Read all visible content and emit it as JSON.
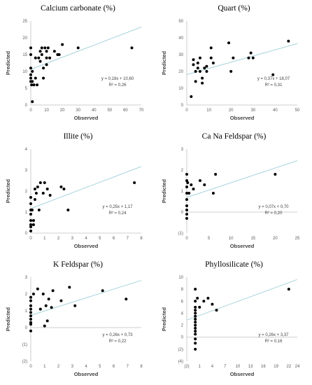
{
  "chart_data": [
    {
      "type": "scatter",
      "title": "Calcium carbonate (%)",
      "xlabel": "Observed",
      "ylabel": "Predicted",
      "xlim": [
        0,
        70
      ],
      "ylim": [
        0,
        25
      ],
      "xticks": [
        "0",
        "10",
        "20",
        "30",
        "40",
        "50",
        "60",
        "70"
      ],
      "yticks": [
        "0",
        "5",
        "10",
        "15",
        "20",
        "25"
      ],
      "points": [
        [
          0,
          17
        ],
        [
          0,
          15
        ],
        [
          0,
          11
        ],
        [
          0,
          9
        ],
        [
          0,
          8
        ],
        [
          0,
          7
        ],
        [
          0.5,
          6
        ],
        [
          1,
          10
        ],
        [
          1,
          7
        ],
        [
          1,
          1
        ],
        [
          2,
          6
        ],
        [
          3,
          14
        ],
        [
          3,
          8
        ],
        [
          4,
          6
        ],
        [
          5,
          14
        ],
        [
          6,
          16
        ],
        [
          6,
          13
        ],
        [
          7,
          17
        ],
        [
          7,
          15
        ],
        [
          8,
          8
        ],
        [
          8,
          11
        ],
        [
          9,
          17
        ],
        [
          10,
          16
        ],
        [
          10,
          14
        ],
        [
          10,
          12
        ],
        [
          11,
          17
        ],
        [
          12,
          14
        ],
        [
          15,
          16
        ],
        [
          17,
          15
        ],
        [
          18,
          15
        ],
        [
          20,
          18
        ],
        [
          30,
          17
        ],
        [
          64,
          17
        ]
      ],
      "trendline": {
        "slope": 0.18,
        "intercept": 10.6
      },
      "equation": "y = 0,18x + 10,60",
      "r2": "R² = 0,26",
      "grid": false
    },
    {
      "type": "scatter",
      "title": "Quart (%)",
      "xlabel": "Observed",
      "ylabel": "Predicted",
      "xlim": [
        0,
        50
      ],
      "ylim": [
        0,
        50
      ],
      "xticks": [
        "0",
        "10",
        "20",
        "30",
        "40",
        "50"
      ],
      "yticks": [
        "0",
        "10",
        "20",
        "30",
        "40",
        "50"
      ],
      "points": [
        [
          2,
          5
        ],
        [
          3,
          27
        ],
        [
          3,
          24
        ],
        [
          4,
          20
        ],
        [
          4,
          14
        ],
        [
          5,
          25
        ],
        [
          5,
          22
        ],
        [
          6,
          28
        ],
        [
          6,
          20
        ],
        [
          7,
          16
        ],
        [
          7,
          13
        ],
        [
          8,
          22
        ],
        [
          9,
          20
        ],
        [
          9,
          23
        ],
        [
          11,
          34
        ],
        [
          11,
          28
        ],
        [
          12,
          25
        ],
        [
          19,
          37
        ],
        [
          20,
          20
        ],
        [
          21,
          28
        ],
        [
          28,
          28
        ],
        [
          29,
          31
        ],
        [
          30,
          28
        ],
        [
          39,
          18
        ],
        [
          46,
          38
        ]
      ],
      "trendline": {
        "slope": 0.37,
        "intercept": 18.07
      },
      "equation": "y = 0,37x + 18,07",
      "r2": "R² = 0,31",
      "grid": false
    },
    {
      "type": "scatter",
      "title": "Illite (%)",
      "xlabel": "Observed",
      "ylabel": "Predicted",
      "xlim": [
        0,
        8
      ],
      "ylim": [
        0,
        4
      ],
      "xticks": [
        "0",
        "1",
        "2",
        "3",
        "4",
        "5",
        "6",
        "7",
        "8"
      ],
      "yticks": [
        "0",
        "1",
        "2",
        "3",
        "4"
      ],
      "points": [
        [
          0,
          1.7
        ],
        [
          0,
          1.4
        ],
        [
          0,
          1.1
        ],
        [
          0,
          0.9
        ],
        [
          0,
          0.6
        ],
        [
          0,
          0.4
        ],
        [
          0,
          0.3
        ],
        [
          0,
          0.1
        ],
        [
          0.1,
          1.1
        ],
        [
          0.2,
          0.6
        ],
        [
          0.2,
          0.4
        ],
        [
          0.3,
          2.1
        ],
        [
          0.3,
          1.6
        ],
        [
          0.4,
          1.9
        ],
        [
          0.5,
          2.2
        ],
        [
          0.6,
          1.1
        ],
        [
          0.7,
          2.4
        ],
        [
          0.9,
          1.9
        ],
        [
          1,
          2.4
        ],
        [
          1.2,
          2.1
        ],
        [
          1.4,
          1.8
        ],
        [
          2.2,
          2.2
        ],
        [
          2.4,
          2.1
        ],
        [
          2.7,
          1.1
        ],
        [
          7.5,
          2.4
        ]
      ],
      "trendline": {
        "slope": 0.25,
        "intercept": 1.17
      },
      "equation": "y = 0,25x + 1,17",
      "r2": "R² = 0,24",
      "grid": false
    },
    {
      "type": "scatter",
      "title": "Ca Na Feldspar (%)",
      "xlabel": "Observed",
      "ylabel": "Predicted",
      "xlim": [
        0,
        25
      ],
      "ylim": [
        -1,
        3
      ],
      "xticks": [
        "0",
        "5",
        "10",
        "15",
        "20",
        "25"
      ],
      "yticks": [
        "(1)",
        "0",
        "1",
        "2",
        "3"
      ],
      "points": [
        [
          0,
          1.8
        ],
        [
          0,
          1.5
        ],
        [
          0,
          1.2
        ],
        [
          0,
          0.9
        ],
        [
          0,
          0.6
        ],
        [
          0,
          0.3
        ],
        [
          0,
          0.1
        ],
        [
          0,
          -0.1
        ],
        [
          0,
          -0.3
        ],
        [
          0.2,
          1.4
        ],
        [
          0.5,
          0.9
        ],
        [
          1,
          1.3
        ],
        [
          1.5,
          1.1
        ],
        [
          3,
          1.5
        ],
        [
          4,
          1.3
        ],
        [
          6,
          0.9
        ],
        [
          6.5,
          1.8
        ],
        [
          20,
          1.8
        ]
      ],
      "trendline": {
        "slope": 0.07,
        "intercept": 0.7
      },
      "equation": "y = 0,07x + 0,70",
      "r2": "R² = 0,20",
      "grid": false
    },
    {
      "type": "scatter",
      "title": "K Feldspar (%)",
      "xlabel": "Observed",
      "ylabel": "Predicted",
      "xlim": [
        0,
        8
      ],
      "ylim": [
        -2,
        3
      ],
      "xticks": [
        "0",
        "1",
        "2",
        "3",
        "4",
        "5",
        "6",
        "7",
        "8"
      ],
      "yticks": [
        "(2)",
        "(1)",
        "0",
        "1",
        "2",
        "3"
      ],
      "points": [
        [
          0,
          1.8
        ],
        [
          0,
          1.6
        ],
        [
          0,
          1.3
        ],
        [
          0,
          1.1
        ],
        [
          0,
          0.9
        ],
        [
          0,
          0.7
        ],
        [
          0,
          0.5
        ],
        [
          0,
          0.3
        ],
        [
          0,
          0.2
        ],
        [
          0,
          -0.2
        ],
        [
          0.2,
          2.0
        ],
        [
          0.5,
          2.3
        ],
        [
          0.7,
          1.1
        ],
        [
          0.9,
          2.0
        ],
        [
          1,
          0.1
        ],
        [
          1.1,
          1.3
        ],
        [
          1.2,
          0.4
        ],
        [
          1.3,
          1.7
        ],
        [
          1.5,
          1.2
        ],
        [
          1.6,
          2.2
        ],
        [
          2.2,
          1.6
        ],
        [
          2.8,
          2.4
        ],
        [
          3.2,
          1.3
        ],
        [
          5.2,
          2.2
        ],
        [
          6.9,
          1.7
        ]
      ],
      "trendline": {
        "slope": 0.26,
        "intercept": 0.73
      },
      "equation": "y = 0,26x + 0,73",
      "r2": "R² = 0,22",
      "grid": false
    },
    {
      "type": "scatter",
      "title": "Phyllosilicate (%)",
      "xlabel": "Observed",
      "ylabel": "Predicted",
      "xlim": [
        -2,
        24
      ],
      "ylim": [
        -4,
        10
      ],
      "xticks": [
        "(2)",
        "1",
        "4",
        "7",
        "10",
        "13",
        "16",
        "19",
        "22",
        "24"
      ],
      "xtick_values": [
        -2,
        1,
        4,
        7,
        10,
        13,
        16,
        19,
        22,
        24
      ],
      "yticks": [
        "(4)",
        "(2)",
        "0",
        "2",
        "4",
        "6",
        "8",
        "10"
      ],
      "points": [
        [
          0,
          8
        ],
        [
          0,
          6
        ],
        [
          0,
          5
        ],
        [
          0,
          4.5
        ],
        [
          0,
          4
        ],
        [
          0,
          3.5
        ],
        [
          0,
          3
        ],
        [
          0,
          2.5
        ],
        [
          0,
          2
        ],
        [
          0,
          1.5
        ],
        [
          0,
          1
        ],
        [
          0,
          0.5
        ],
        [
          0,
          -0.3
        ],
        [
          0,
          -1
        ],
        [
          0,
          -2
        ],
        [
          0.5,
          6.5
        ],
        [
          1,
          5
        ],
        [
          2,
          6
        ],
        [
          3,
          6.5
        ],
        [
          4,
          5.5
        ],
        [
          5,
          4.5
        ],
        [
          22,
          8
        ]
      ],
      "trendline": {
        "slope": 0.26,
        "intercept": 3.37
      },
      "equation": "y = 0,26x + 3,37",
      "r2": "R² = 0,16",
      "grid": false
    }
  ],
  "colors": {
    "marker": "#000000",
    "trendline": "#a7d3dc",
    "axis": "#bfbfbf",
    "tick_text": "#595959",
    "label_text": "#404040"
  }
}
